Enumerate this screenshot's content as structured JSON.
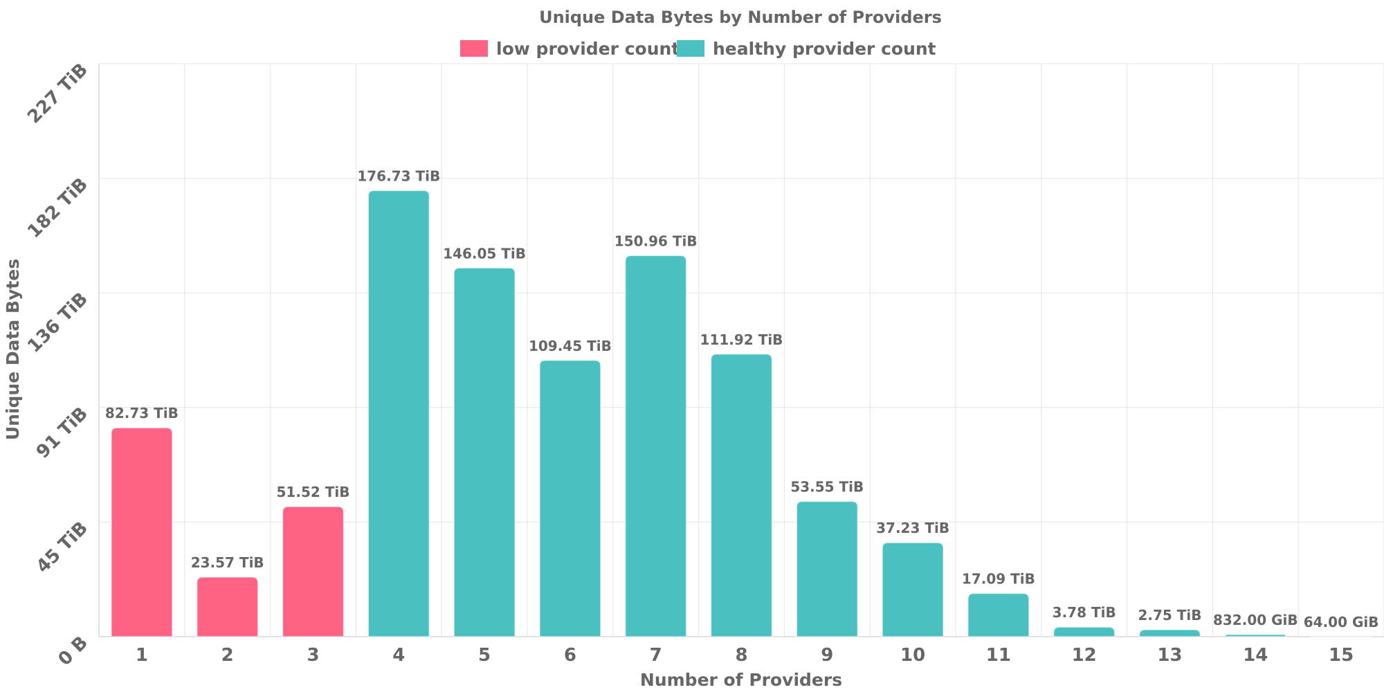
{
  "chart_data": {
    "type": "bar",
    "title": "Unique Data Bytes by Number of Providers",
    "xlabel": "Number of Providers",
    "ylabel": "Unique Data Bytes",
    "y_unit": "TiB",
    "ylim": [
      0,
      227
    ],
    "y_ticks": [
      {
        "value": 0,
        "label": "0 B"
      },
      {
        "value": 45.4,
        "label": "45 TiB"
      },
      {
        "value": 90.8,
        "label": "91 TiB"
      },
      {
        "value": 136.2,
        "label": "136 TiB"
      },
      {
        "value": 181.6,
        "label": "182 TiB"
      },
      {
        "value": 227,
        "label": "227 TiB"
      }
    ],
    "categories": [
      "1",
      "2",
      "3",
      "4",
      "5",
      "6",
      "7",
      "8",
      "9",
      "10",
      "11",
      "12",
      "13",
      "14",
      "15"
    ],
    "values": [
      82.73,
      23.57,
      51.52,
      176.73,
      146.05,
      109.45,
      150.96,
      111.92,
      53.55,
      37.23,
      17.09,
      3.78,
      2.75,
      0.8125,
      0.0625
    ],
    "data_labels": [
      "82.73 TiB",
      "23.57 TiB",
      "51.52 TiB",
      "176.73 TiB",
      "146.05 TiB",
      "109.45 TiB",
      "150.96 TiB",
      "111.92 TiB",
      "53.55 TiB",
      "37.23 TiB",
      "17.09 TiB",
      "3.78 TiB",
      "2.75 TiB",
      "832.00 GiB",
      "64.00 GiB"
    ],
    "bar_groups": [
      "low",
      "low",
      "low",
      "healthy",
      "healthy",
      "healthy",
      "healthy",
      "healthy",
      "healthy",
      "healthy",
      "healthy",
      "healthy",
      "healthy",
      "healthy",
      "healthy"
    ],
    "series": [
      {
        "key": "low",
        "name": "low provider count",
        "color": "#ff6384"
      },
      {
        "key": "healthy",
        "name": "healthy provider count",
        "color": "#4bc0c0"
      }
    ],
    "grid": true,
    "legend_position": "top-center"
  }
}
